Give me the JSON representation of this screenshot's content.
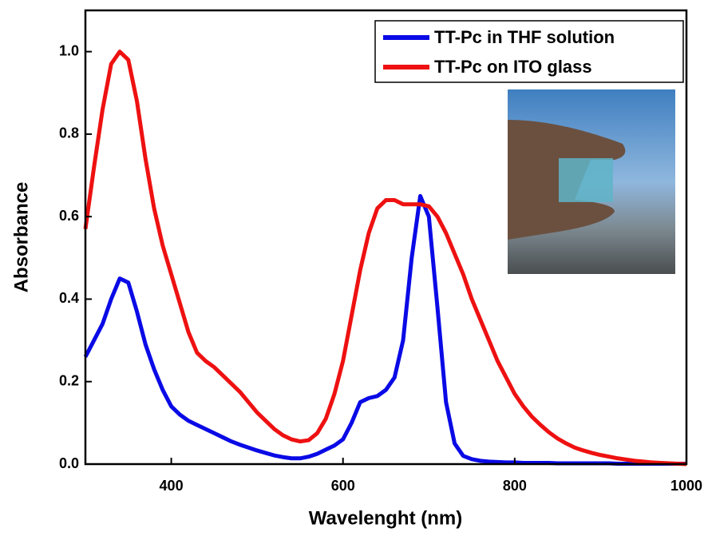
{
  "chart_data": {
    "type": "line",
    "x_label": "Wavelenght (nm)",
    "y_label": "Absorbance",
    "x": [
      300,
      310,
      320,
      330,
      340,
      350,
      360,
      370,
      380,
      390,
      400,
      410,
      420,
      430,
      440,
      450,
      460,
      470,
      480,
      490,
      500,
      510,
      520,
      530,
      540,
      550,
      560,
      570,
      580,
      590,
      600,
      610,
      620,
      630,
      640,
      650,
      660,
      670,
      680,
      690,
      700,
      710,
      720,
      730,
      740,
      750,
      760,
      770,
      780,
      790,
      800,
      810,
      820,
      830,
      840,
      850,
      860,
      870,
      880,
      890,
      900,
      910,
      920,
      930,
      940,
      950,
      960,
      970,
      980,
      990,
      1000
    ],
    "series": [
      {
        "name": "TT-Pc in THF solution",
        "color": "#0a0ae6",
        "values": [
          0.26,
          0.3,
          0.34,
          0.4,
          0.45,
          0.44,
          0.37,
          0.29,
          0.23,
          0.18,
          0.14,
          0.12,
          0.105,
          0.095,
          0.085,
          0.075,
          0.065,
          0.055,
          0.047,
          0.04,
          0.033,
          0.027,
          0.021,
          0.017,
          0.014,
          0.014,
          0.018,
          0.025,
          0.035,
          0.045,
          0.06,
          0.1,
          0.15,
          0.16,
          0.165,
          0.18,
          0.21,
          0.3,
          0.5,
          0.65,
          0.6,
          0.38,
          0.15,
          0.05,
          0.02,
          0.012,
          0.008,
          0.006,
          0.005,
          0.004,
          0.004,
          0.003,
          0.003,
          0.003,
          0.003,
          0.002,
          0.002,
          0.002,
          0.002,
          0.002,
          0.002,
          0.002,
          0.001,
          0.001,
          0.001,
          0.001,
          0.001,
          0.001,
          0.001,
          0.001,
          0.001
        ]
      },
      {
        "name": "TT-Pc on ITO glass",
        "color": "#ee1111",
        "values": [
          0.57,
          0.72,
          0.86,
          0.97,
          1.0,
          0.98,
          0.88,
          0.74,
          0.62,
          0.53,
          0.46,
          0.39,
          0.32,
          0.27,
          0.25,
          0.235,
          0.215,
          0.195,
          0.175,
          0.15,
          0.125,
          0.105,
          0.085,
          0.07,
          0.06,
          0.055,
          0.058,
          0.075,
          0.11,
          0.17,
          0.25,
          0.36,
          0.47,
          0.56,
          0.62,
          0.64,
          0.64,
          0.63,
          0.63,
          0.63,
          0.625,
          0.6,
          0.56,
          0.51,
          0.46,
          0.4,
          0.35,
          0.3,
          0.25,
          0.21,
          0.17,
          0.14,
          0.115,
          0.095,
          0.077,
          0.062,
          0.05,
          0.04,
          0.033,
          0.027,
          0.022,
          0.018,
          0.014,
          0.011,
          0.008,
          0.006,
          0.004,
          0.003,
          0.002,
          0.001,
          0
        ]
      }
    ],
    "xlim": [
      300,
      1000
    ],
    "xticks": [
      400,
      600,
      800,
      1000
    ],
    "ylim": [
      0,
      1.1
    ],
    "yticks": [
      {
        "value": 0,
        "label": "0.0"
      },
      0.2,
      0.4,
      0.6,
      0.8,
      {
        "value": 1,
        "label": "1.0"
      }
    ],
    "legend": "upper right"
  }
}
